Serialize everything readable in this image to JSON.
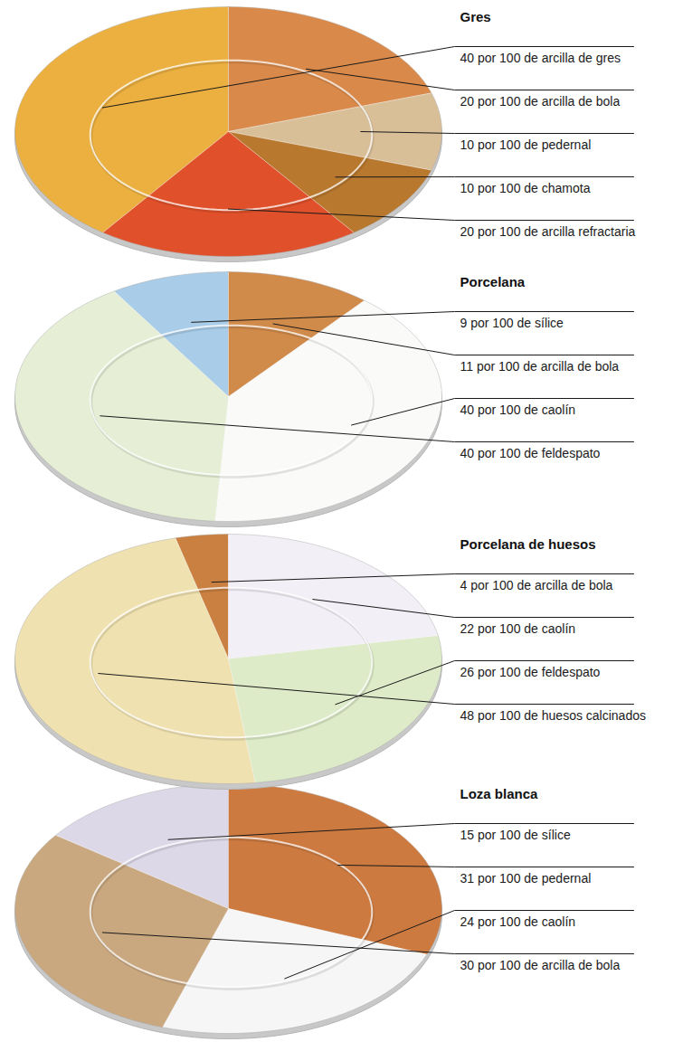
{
  "chart_data": [
    {
      "type": "pie",
      "title": "Gres",
      "categories": [
        "40 por 100 de arcilla de gres",
        "20 por 100 de arcilla de bola",
        "10 por 100 de pedernal",
        "10 por 100 de chamota",
        "20 por 100 de arcilla refractaria"
      ],
      "values": [
        40,
        20,
        10,
        10,
        20
      ],
      "colors": [
        "#ebb040",
        "#d98a4a",
        "#d9bf98",
        "#b8782e",
        "#e0502a"
      ]
    },
    {
      "type": "pie",
      "title": "Porcelana",
      "categories": [
        "9 por 100 de sílice",
        "11 por 100 de arcilla de bola",
        "40 por 100 de caolín",
        "40 por 100 de feldespato"
      ],
      "values": [
        9,
        11,
        40,
        40
      ],
      "colors": [
        "#a9cde8",
        "#d08a4a",
        "#fafaf8",
        "#e6efd6"
      ]
    },
    {
      "type": "pie",
      "title": "Porcelana de huesos",
      "categories": [
        "4 por 100 de arcilla de bola",
        "22 por 100 de caolín",
        "26 por 100 de feldespato",
        "48 por 100 de huesos calcinados"
      ],
      "values": [
        4,
        22,
        26,
        48
      ],
      "colors": [
        "#c98040",
        "#f2f0f6",
        "#ddebc8",
        "#f0e2b0"
      ]
    },
    {
      "type": "pie",
      "title": "Loza blanca",
      "categories": [
        "15 por 100 de sílice",
        "31 por 100 de pedernal",
        "24 por 100 de caolín",
        "30 por 100 de arcilla de bola"
      ],
      "values": [
        15,
        31,
        24,
        30
      ],
      "colors": [
        "#dcd8e8",
        "#cc7a40",
        "#f6f6f6",
        "#c9a880"
      ]
    }
  ]
}
